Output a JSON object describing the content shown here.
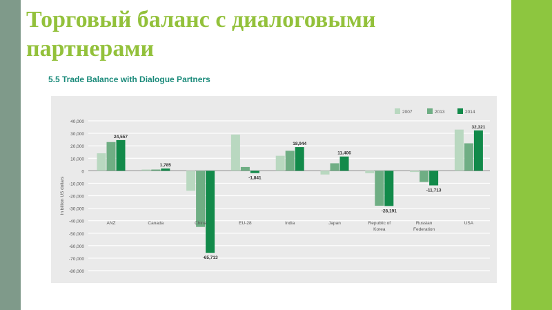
{
  "slide": {
    "title": "Торговый баланс с диалоговыми партнерами",
    "chart_heading": "5.5 Trade Balance with Dialogue Partners"
  },
  "colors": {
    "left_bar": "#7f9a8a",
    "right_bar": "#8dc63f",
    "title": "#93c13b",
    "heading": "#1a8a7a",
    "panel": "#eaeaea"
  },
  "chart_data": {
    "type": "bar",
    "title": "5.5 Trade Balance with Dialogue Partners",
    "ylabel": "In billion US dollars",
    "xlabel": "",
    "ylim": [
      -80000,
      40000
    ],
    "yticks": [
      40000,
      30000,
      20000,
      10000,
      0,
      -10000,
      -20000,
      -30000,
      -40000,
      -50000,
      -60000,
      -70000,
      -80000
    ],
    "ytick_labels": [
      "40,000",
      "30,000",
      "20,000",
      "10,000",
      "0",
      "-10,000",
      "-20,000",
      "-30,000",
      "-40,000",
      "-50,000",
      "-60,000",
      "-70,000",
      "-80,000"
    ],
    "grid": true,
    "legend": "top-right",
    "categories": [
      [
        "ANZ"
      ],
      [
        "Canada"
      ],
      [
        "China"
      ],
      [
        "EU-28"
      ],
      [
        "India"
      ],
      [
        "Japan"
      ],
      [
        "Republic of",
        "Korea"
      ],
      [
        "Russian",
        "Federation"
      ],
      [
        "USA"
      ]
    ],
    "series": [
      {
        "name": "2007",
        "color": "#b9d8c0",
        "values": [
          14000,
          1000,
          -16000,
          29000,
          12000,
          -3000,
          -2000,
          -1000,
          33000
        ]
      },
      {
        "name": "2013",
        "color": "#6fae84",
        "values": [
          23000,
          1000,
          -45000,
          3000,
          16000,
          6000,
          -28000,
          -9000,
          22000
        ]
      },
      {
        "name": "2014",
        "color": "#128a4a",
        "values": [
          24557,
          1785,
          -65713,
          -1841,
          18944,
          11406,
          -28191,
          -11713,
          32321
        ]
      }
    ],
    "data_labels": [
      {
        "category": 0,
        "series": 2,
        "text": "24,557"
      },
      {
        "category": 1,
        "series": 2,
        "text": "1,785"
      },
      {
        "category": 2,
        "series": 2,
        "text": "-65,713"
      },
      {
        "category": 3,
        "series": 2,
        "text": "-1,841"
      },
      {
        "category": 4,
        "series": 2,
        "text": "18,944"
      },
      {
        "category": 5,
        "series": 2,
        "text": "11,406"
      },
      {
        "category": 6,
        "series": 2,
        "text": "-28,191"
      },
      {
        "category": 7,
        "series": 2,
        "text": "-11,713"
      },
      {
        "category": 8,
        "series": 2,
        "text": "32,321"
      }
    ]
  }
}
